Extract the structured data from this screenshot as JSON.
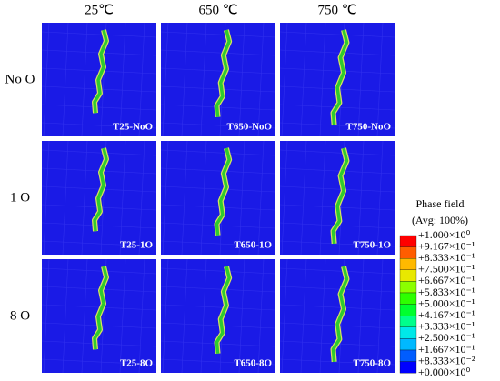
{
  "columns": [
    "25℃",
    "650 ℃",
    "750 ℃"
  ],
  "rows": [
    "No O",
    "1 O",
    "8 O"
  ],
  "panels": [
    [
      "T25-NoO",
      "T650-NoO",
      "T750-NoO"
    ],
    [
      "T25-1O",
      "T650-1O",
      "T750-1O"
    ],
    [
      "T25-8O",
      "T650-8O",
      "T750-8O"
    ]
  ],
  "legend": {
    "title": "Phase field",
    "subtitle": "(Avg: 100%)",
    "labels": [
      "+1.000×10⁰",
      "+9.167×10⁻¹",
      "+8.333×10⁻¹",
      "+7.500×10⁻¹",
      "+6.667×10⁻¹",
      "+5.833×10⁻¹",
      "+5.000×10⁻¹",
      "+4.167×10⁻¹",
      "+3.333×10⁻¹",
      "+2.500×10⁻¹",
      "+1.667×10⁻¹",
      "+8.333×10⁻²",
      "+0.000×10⁰"
    ],
    "colors": [
      "#ff0000",
      "#ff5d00",
      "#ffb900",
      "#e8e800",
      "#8bff00",
      "#2eff00",
      "#00ff2e",
      "#00ff8b",
      "#00e8e8",
      "#00b9ff",
      "#005dff",
      "#0000ff"
    ]
  }
}
